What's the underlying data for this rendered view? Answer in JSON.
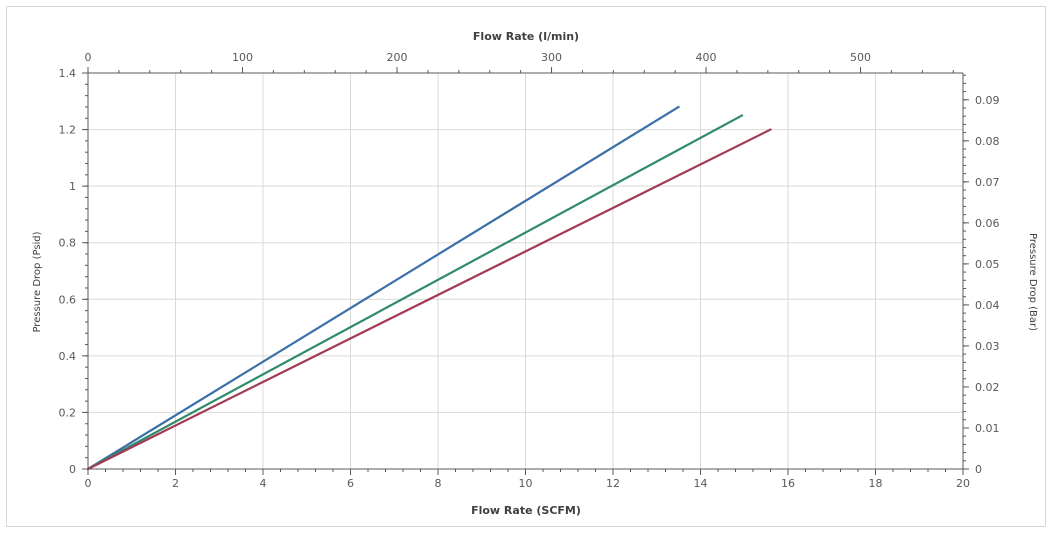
{
  "chart_data": {
    "type": "line",
    "xlabel": "Flow Rate (SCFM)",
    "ylabel": "Pressure Drop (Psid)",
    "x2label": "Flow Rate (l/min)",
    "y2label": "Pressure Drop (Bar)",
    "xlim": [
      0,
      20
    ],
    "ylim": [
      0,
      1.4
    ],
    "x2lim": [
      0,
      566.3
    ],
    "y2lim": [
      0,
      0.09653
    ],
    "x_ticks": [
      "0",
      "2",
      "4",
      "6",
      "8",
      "10",
      "12",
      "14",
      "16",
      "18",
      "20"
    ],
    "y_ticks": [
      "0",
      "0.2",
      "0.4",
      "0.6",
      "0.8",
      "1",
      "1.2",
      "1.4"
    ],
    "x2_ticks": [
      "0",
      "100",
      "200",
      "300",
      "400",
      "500"
    ],
    "y2_ticks": [
      "0",
      "0.01",
      "0.02",
      "0.03",
      "0.04",
      "0.05",
      "0.06",
      "0.07",
      "0.08",
      "0.09"
    ],
    "grid": true,
    "series": [
      {
        "color": "#3a6fa8",
        "x": [
          0,
          13.5
        ],
        "y": [
          0,
          1.28
        ]
      },
      {
        "color": "#2f8a6e",
        "x": [
          0,
          14.95
        ],
        "y": [
          0,
          1.25
        ]
      },
      {
        "color": "#a23a52",
        "x": [
          0,
          15.6
        ],
        "y": [
          0,
          1.2
        ]
      }
    ]
  }
}
